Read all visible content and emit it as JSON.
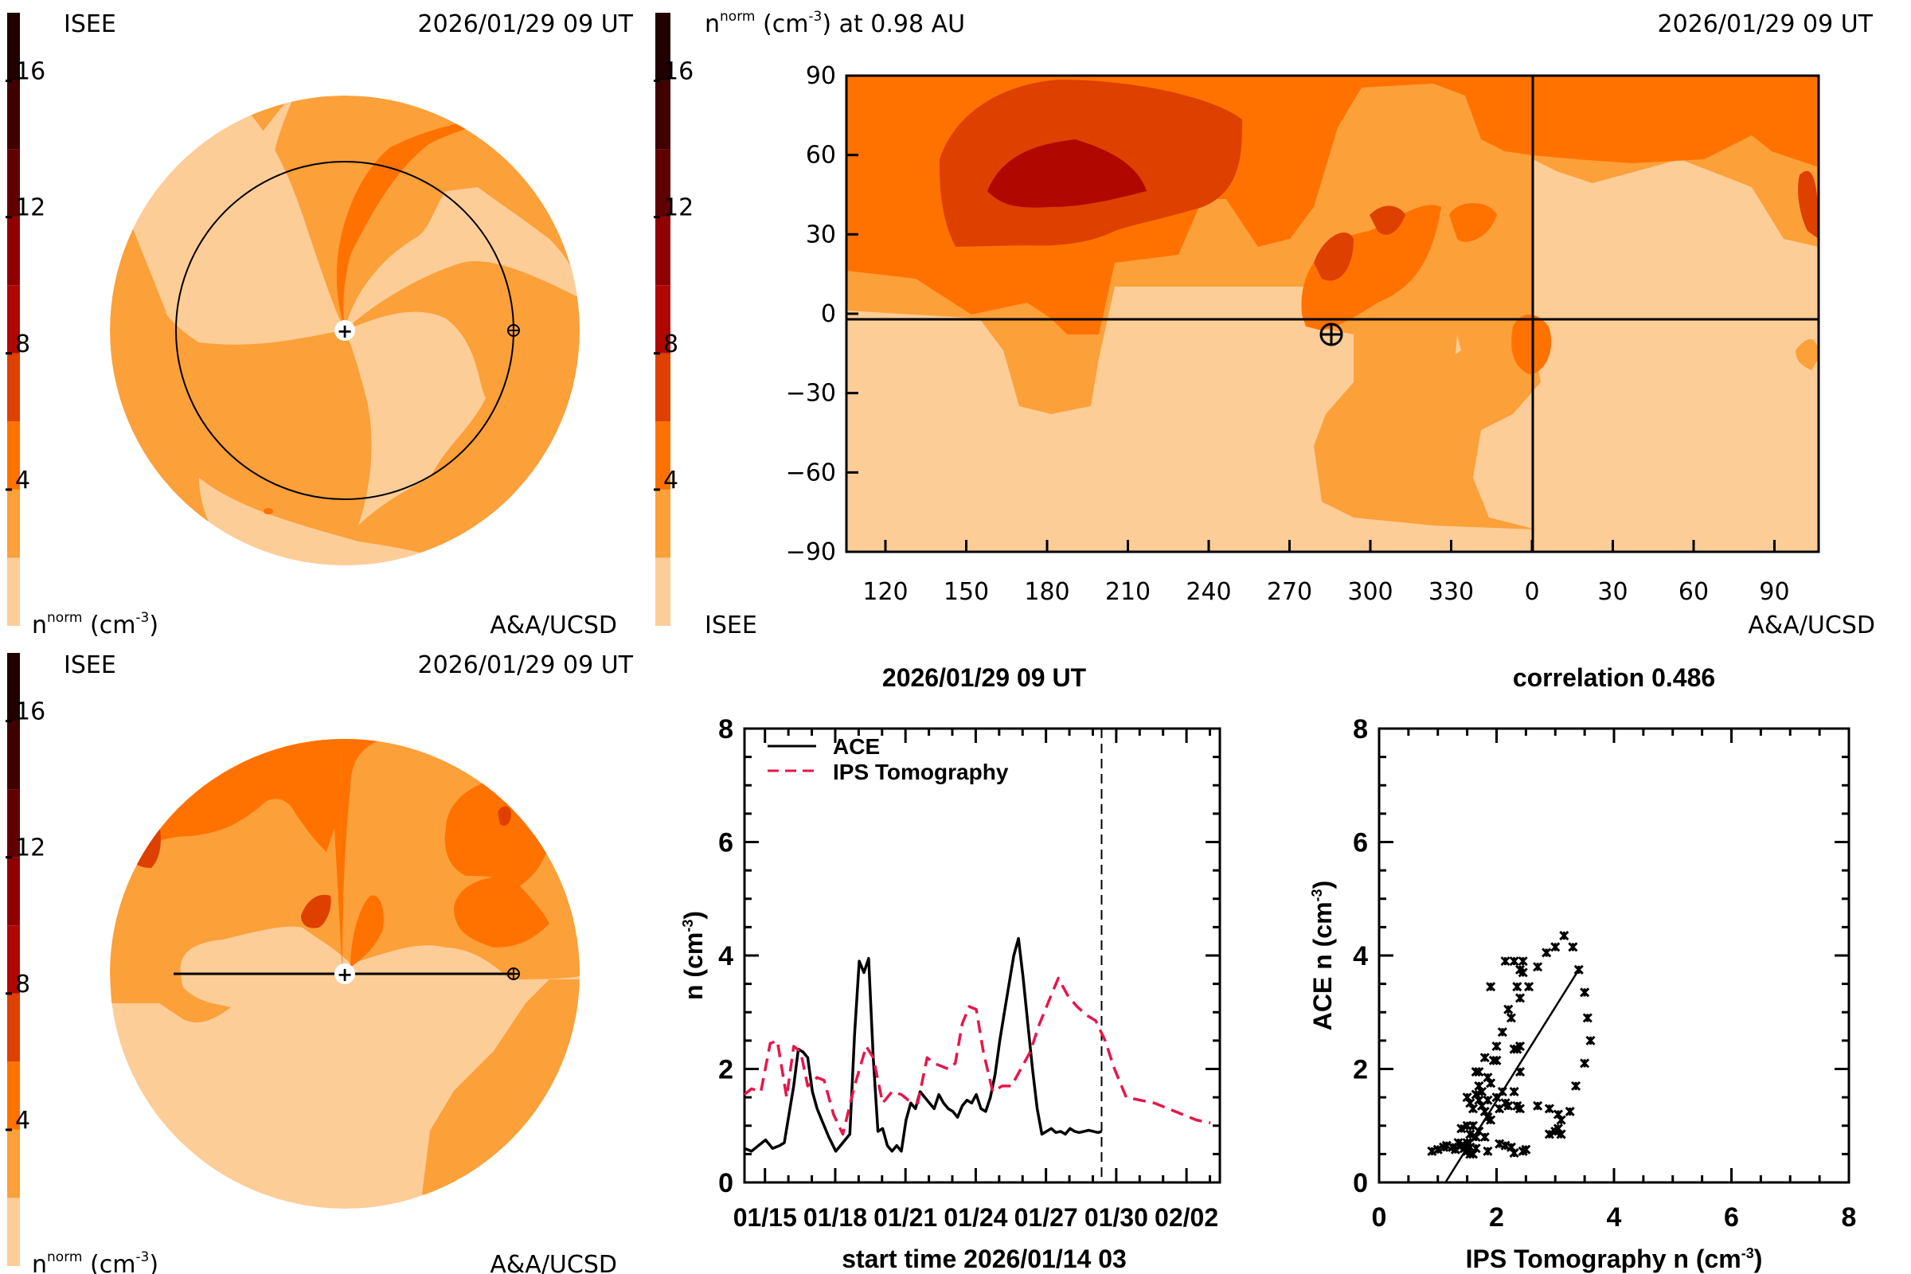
{
  "colorbar": {
    "bands": [
      {
        "from": 0,
        "to": 2,
        "color": "#fdcd98"
      },
      {
        "from": 2,
        "to": 4,
        "color": "#fca03a"
      },
      {
        "from": 4,
        "to": 6,
        "color": "#ff7200"
      },
      {
        "from": 6,
        "to": 8,
        "color": "#de4000"
      },
      {
        "from": 8,
        "to": 10,
        "color": "#b00800"
      },
      {
        "from": 10,
        "to": 12,
        "color": "#900000"
      },
      {
        "from": 12,
        "to": 14,
        "color": "#600000"
      },
      {
        "from": 14,
        "to": 16,
        "color": "#400000"
      },
      {
        "from": 16,
        "to": 18,
        "color": "#200000"
      }
    ],
    "range": [
      0,
      18
    ],
    "ticks": [
      4,
      8,
      12,
      16
    ],
    "tick_labels": [
      "4",
      "8",
      "12",
      "16"
    ]
  },
  "panel_top_left": {
    "source": "ISEE",
    "timestamp": "2026/01/29 09 UT",
    "units_label": "n",
    "units_sup": "norm",
    "units_rest": "(cm",
    "units_exp": "-3",
    "units_close": ")",
    "credit": "A&A/UCSD",
    "view": "ecliptic (top-down)"
  },
  "panel_top_right": {
    "title_n": "n",
    "title_sup": "norm",
    "title_rest": "(cm",
    "title_exp": "-3",
    "title_tail": ") at 0.98 AU",
    "timestamp": "2026/01/29 09 UT",
    "source": "ISEE",
    "credit": "A&A/UCSD",
    "lat_ticks": [
      "90",
      "60",
      "30",
      "0",
      "−30",
      "−60",
      "−90"
    ],
    "lon_ticks": [
      "120",
      "150",
      "180",
      "210",
      "240",
      "270",
      "300",
      "330",
      "0",
      "30",
      "60",
      "90"
    ]
  },
  "panel_bottom_left": {
    "source": "ISEE",
    "timestamp": "2026/01/29 09 UT",
    "units_label": "n",
    "units_sup": "norm",
    "units_rest": "(cm",
    "units_exp": "-3",
    "units_close": ")",
    "credit": "A&A/UCSD",
    "view": "meridional (side)"
  },
  "chart_data": [
    {
      "type": "line",
      "title": "2026/01/29 09 UT",
      "xlabel": "start time 2026/01/14 03",
      "ylabel": "n (cm",
      "ylabel_exp": "-3",
      "ylim": [
        0,
        8
      ],
      "yticks": [
        0,
        2,
        4,
        6,
        8
      ],
      "xlim_days": [
        0,
        20.3
      ],
      "xtick_labels": [
        "01/15",
        "01/18",
        "01/21",
        "01/24",
        "01/27",
        "01/30",
        "02/02"
      ],
      "xtick_days": [
        0.875,
        3.875,
        6.875,
        9.875,
        12.875,
        15.875,
        18.875
      ],
      "current_time_day": 15.25,
      "legend": {
        "position": "top-left",
        "entries": [
          "ACE",
          "IPS Tomography"
        ]
      },
      "series": [
        {
          "name": "ACE",
          "color": "#000000",
          "style": "solid",
          "x": [
            0.0,
            0.3,
            0.6,
            0.9,
            1.2,
            1.5,
            1.7,
            1.9,
            2.1,
            2.3,
            2.5,
            2.7,
            2.9,
            3.1,
            3.3,
            3.6,
            3.9,
            4.2,
            4.5,
            4.7,
            4.9,
            5.1,
            5.3,
            5.5,
            5.7,
            5.9,
            6.1,
            6.3,
            6.5,
            6.7,
            6.9,
            7.1,
            7.3,
            7.5,
            7.7,
            7.9,
            8.1,
            8.3,
            8.5,
            8.7,
            8.9,
            9.1,
            9.3,
            9.5,
            9.7,
            9.9,
            10.1,
            10.3,
            10.5,
            10.7,
            10.9,
            11.1,
            11.3,
            11.5,
            11.7,
            11.9,
            12.1,
            12.3,
            12.5,
            12.7,
            12.9,
            13.1,
            13.3,
            13.5,
            13.7,
            13.9,
            14.1,
            14.3,
            14.5,
            14.7,
            14.9,
            15.1,
            15.25
          ],
          "values": [
            0.6,
            0.55,
            0.65,
            0.75,
            0.6,
            0.65,
            0.7,
            1.2,
            1.7,
            2.35,
            2.3,
            2.2,
            1.6,
            1.3,
            1.1,
            0.8,
            0.55,
            0.7,
            0.85,
            2.6,
            3.9,
            3.7,
            3.95,
            2.2,
            0.9,
            0.95,
            0.65,
            0.55,
            0.65,
            0.55,
            1.1,
            1.4,
            1.3,
            1.6,
            1.5,
            1.4,
            1.3,
            1.55,
            1.4,
            1.3,
            1.25,
            1.15,
            1.35,
            1.45,
            1.4,
            1.55,
            1.3,
            1.25,
            1.5,
            1.9,
            2.5,
            3.0,
            3.5,
            4.0,
            4.3,
            3.6,
            2.8,
            2.0,
            1.3,
            0.85,
            0.9,
            0.95,
            0.88,
            0.9,
            0.85,
            0.95,
            0.9,
            0.88,
            0.9,
            0.92,
            0.9,
            0.88,
            0.9
          ]
        },
        {
          "name": "IPS Tomography",
          "color": "#e8154a",
          "style": "dashed",
          "x": [
            0.0,
            0.3,
            0.7,
            1.1,
            1.4,
            1.8,
            2.1,
            2.4,
            2.7,
            3.1,
            3.4,
            3.8,
            4.2,
            4.7,
            5.2,
            5.5,
            5.9,
            6.3,
            6.7,
            7.0,
            7.4,
            7.8,
            8.1,
            8.4,
            8.7,
            9.0,
            9.3,
            9.6,
            9.9,
            10.2,
            10.6,
            11.0,
            11.4,
            11.8,
            12.2,
            12.6,
            13.0,
            13.4,
            13.8,
            14.2,
            14.6,
            15.0,
            15.4,
            15.8,
            16.3,
            16.9,
            17.5,
            18.1,
            18.7,
            19.3,
            19.9
          ],
          "values": [
            1.55,
            1.65,
            1.6,
            2.45,
            2.5,
            1.5,
            2.4,
            2.3,
            1.7,
            1.85,
            1.8,
            1.2,
            0.85,
            1.7,
            2.4,
            2.2,
            1.4,
            1.6,
            1.55,
            1.45,
            1.4,
            2.2,
            2.1,
            2.05,
            2.0,
            2.1,
            2.8,
            3.1,
            3.05,
            2.3,
            1.6,
            1.7,
            1.7,
            2.0,
            2.3,
            2.8,
            3.2,
            3.6,
            3.3,
            3.1,
            2.95,
            2.85,
            2.5,
            2.0,
            1.5,
            1.45,
            1.4,
            1.3,
            1.2,
            1.1,
            1.05
          ]
        }
      ]
    },
    {
      "type": "scatter",
      "title": "correlation 0.486",
      "xlabel": "IPS Tomography n (cm",
      "xlabel_exp": "-3",
      "ylabel": "ACE n (cm",
      "ylabel_exp": "-3",
      "xlim": [
        0,
        8
      ],
      "ylim": [
        0,
        8
      ],
      "xticks": [
        0,
        2,
        4,
        6,
        8
      ],
      "yticks": [
        0,
        2,
        4,
        6,
        8
      ],
      "correlation": 0.486,
      "marker": "x",
      "points": [
        [
          0.9,
          0.55
        ],
        [
          1.0,
          0.58
        ],
        [
          1.1,
          0.62
        ],
        [
          1.15,
          0.65
        ],
        [
          1.25,
          0.62
        ],
        [
          1.3,
          0.58
        ],
        [
          1.35,
          0.7
        ],
        [
          1.4,
          0.65
        ],
        [
          1.45,
          0.6
        ],
        [
          1.5,
          0.55
        ],
        [
          1.55,
          0.62
        ],
        [
          1.5,
          0.7
        ],
        [
          1.6,
          0.5
        ],
        [
          1.65,
          0.6
        ],
        [
          1.55,
          0.5
        ],
        [
          1.4,
          0.95
        ],
        [
          1.5,
          1.0
        ],
        [
          1.6,
          1.0
        ],
        [
          1.55,
          0.85
        ],
        [
          1.65,
          0.8
        ],
        [
          1.7,
          0.9
        ],
        [
          1.8,
          0.8
        ],
        [
          1.5,
          1.5
        ],
        [
          1.55,
          1.4
        ],
        [
          1.6,
          1.3
        ],
        [
          1.7,
          1.45
        ],
        [
          1.65,
          1.55
        ],
        [
          1.75,
          1.35
        ],
        [
          1.8,
          1.25
        ],
        [
          1.85,
          1.15
        ],
        [
          1.9,
          1.1
        ],
        [
          1.7,
          1.7
        ],
        [
          1.75,
          1.6
        ],
        [
          1.85,
          1.45
        ],
        [
          2.0,
          1.5
        ],
        [
          2.05,
          1.3
        ],
        [
          2.1,
          1.6
        ],
        [
          2.15,
          1.4
        ],
        [
          2.2,
          1.35
        ],
        [
          2.3,
          1.6
        ],
        [
          2.35,
          1.35
        ],
        [
          2.4,
          1.3
        ],
        [
          1.65,
          1.95
        ],
        [
          1.7,
          1.95
        ],
        [
          1.8,
          2.2
        ],
        [
          1.85,
          1.85
        ],
        [
          1.9,
          1.75
        ],
        [
          1.95,
          2.15
        ],
        [
          2.0,
          2.15
        ],
        [
          2.0,
          2.4
        ],
        [
          2.1,
          2.65
        ],
        [
          2.2,
          3.05
        ],
        [
          2.25,
          2.9
        ],
        [
          2.3,
          2.35
        ],
        [
          2.35,
          2.35
        ],
        [
          2.4,
          2.4
        ],
        [
          2.4,
          1.95
        ],
        [
          1.9,
          3.45
        ],
        [
          2.15,
          3.9
        ],
        [
          2.3,
          3.9
        ],
        [
          2.35,
          3.45
        ],
        [
          2.4,
          3.25
        ],
        [
          2.4,
          3.75
        ],
        [
          2.45,
          3.7
        ],
        [
          2.45,
          3.9
        ],
        [
          2.55,
          3.45
        ],
        [
          2.7,
          3.8
        ],
        [
          2.85,
          4.05
        ],
        [
          3.0,
          4.15
        ],
        [
          3.15,
          4.35
        ],
        [
          3.3,
          4.15
        ],
        [
          3.4,
          3.75
        ],
        [
          3.5,
          3.35
        ],
        [
          3.55,
          2.9
        ],
        [
          3.6,
          2.5
        ],
        [
          3.5,
          2.1
        ],
        [
          3.35,
          1.7
        ],
        [
          2.7,
          1.35
        ],
        [
          2.9,
          1.3
        ],
        [
          3.05,
          1.2
        ],
        [
          3.1,
          1.1
        ],
        [
          3.25,
          1.25
        ],
        [
          2.9,
          0.85
        ],
        [
          3.0,
          0.9
        ],
        [
          3.05,
          0.95
        ],
        [
          3.1,
          0.85
        ],
        [
          1.85,
          0.55
        ],
        [
          2.05,
          0.68
        ],
        [
          2.15,
          0.65
        ],
        [
          2.25,
          0.62
        ],
        [
          2.3,
          0.52
        ],
        [
          2.45,
          0.55
        ],
        [
          2.5,
          0.58
        ]
      ],
      "fit_line": {
        "x": [
          1.13,
          3.4
        ],
        "y": [
          0.0,
          3.75
        ]
      }
    }
  ]
}
